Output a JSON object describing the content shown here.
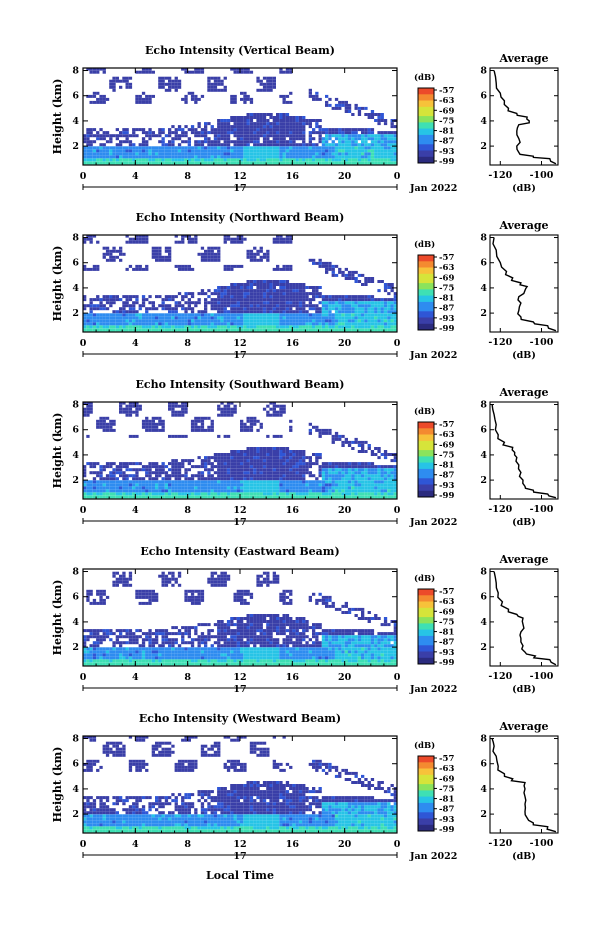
{
  "figure": {
    "xlabel": "Local Time",
    "colormap": [
      "#2b2b7e",
      "#3a3fa8",
      "#2f56d6",
      "#2e8cf0",
      "#27c4e6",
      "#3ee0b4",
      "#8be35c",
      "#d6e43a",
      "#f7c23a",
      "#f48a30",
      "#ec4a2a"
    ]
  },
  "chart_data": [
    {
      "type": "heatmap",
      "title": "Echo Intensity (Vertical Beam)",
      "ylabel": "Height (km)",
      "date_label": "17",
      "date_suffix": "Jan 2022",
      "x_ticks": [
        "0",
        "4",
        "8",
        "12",
        "16",
        "20",
        "0"
      ],
      "y_ticks": [
        "2",
        "4",
        "6",
        "8"
      ],
      "xlim": [
        0,
        24
      ],
      "ylim": [
        0.5,
        8.2
      ],
      "colorbar": {
        "unit": "(dB)",
        "ticks": [
          "-57",
          "-63",
          "-69",
          "-75",
          "-81",
          "-87",
          "-93",
          "-99"
        ]
      },
      "profile": {
        "title": "Average",
        "xlabel": "(dB)",
        "x_ticks": [
          "-120",
          "-100"
        ],
        "y_ticks": [
          "2",
          "4",
          "6",
          "8"
        ],
        "xlim": [
          -125,
          -92
        ],
        "ylim": [
          0.5,
          8.2
        ],
        "points": [
          [
            -93,
            0.6
          ],
          [
            -96,
            1.0
          ],
          [
            -104,
            1.2
          ],
          [
            -111,
            1.5
          ],
          [
            -112,
            2.0
          ],
          [
            -111,
            2.6
          ],
          [
            -112,
            3.2
          ],
          [
            -111,
            3.7
          ],
          [
            -106,
            4.0
          ],
          [
            -107,
            4.3
          ],
          [
            -112,
            4.6
          ],
          [
            -116,
            5.0
          ],
          [
            -118,
            5.6
          ],
          [
            -120,
            6.2
          ],
          [
            -122,
            7.0
          ],
          [
            -123,
            8.0
          ]
        ]
      }
    },
    {
      "type": "heatmap",
      "title": "Echo Intensity (Northward Beam)",
      "ylabel": "Height (km)",
      "date_label": "17",
      "date_suffix": "Jan 2022",
      "x_ticks": [
        "0",
        "4",
        "8",
        "12",
        "16",
        "20",
        "0"
      ],
      "y_ticks": [
        "2",
        "4",
        "6",
        "8"
      ],
      "xlim": [
        0,
        24
      ],
      "ylim": [
        0.5,
        8.2
      ],
      "colorbar": {
        "unit": "(dB)",
        "ticks": [
          "-57",
          "-63",
          "-69",
          "-75",
          "-81",
          "-87",
          "-93",
          "-99"
        ]
      },
      "profile": {
        "title": "Average",
        "xlabel": "(dB)",
        "x_ticks": [
          "-120",
          "-100"
        ],
        "y_ticks": [
          "2",
          "4",
          "6",
          "8"
        ],
        "xlim": [
          -125,
          -92
        ],
        "ylim": [
          0.5,
          8.2
        ],
        "points": [
          [
            -93,
            0.6
          ],
          [
            -97,
            1.0
          ],
          [
            -104,
            1.3
          ],
          [
            -110,
            1.7
          ],
          [
            -111,
            2.2
          ],
          [
            -110,
            2.8
          ],
          [
            -111,
            3.3
          ],
          [
            -108,
            3.8
          ],
          [
            -107,
            4.1
          ],
          [
            -110,
            4.4
          ],
          [
            -114,
            4.8
          ],
          [
            -117,
            5.3
          ],
          [
            -120,
            6.0
          ],
          [
            -122,
            7.0
          ],
          [
            -123,
            8.0
          ]
        ]
      }
    },
    {
      "type": "heatmap",
      "title": "Echo Intensity (Southward Beam)",
      "ylabel": "Height (km)",
      "date_label": "17",
      "date_suffix": "Jan 2022",
      "x_ticks": [
        "0",
        "4",
        "8",
        "12",
        "16",
        "20",
        "0"
      ],
      "y_ticks": [
        "2",
        "4",
        "6",
        "8"
      ],
      "xlim": [
        0,
        24
      ],
      "ylim": [
        0.5,
        8.2
      ],
      "colorbar": {
        "unit": "(dB)",
        "ticks": [
          "-57",
          "-63",
          "-69",
          "-75",
          "-81",
          "-87",
          "-93",
          "-99"
        ]
      },
      "profile": {
        "title": "Average",
        "xlabel": "(dB)",
        "x_ticks": [
          "-120",
          "-100"
        ],
        "y_ticks": [
          "2",
          "4",
          "6",
          "8"
        ],
        "xlim": [
          -125,
          -92
        ],
        "ylim": [
          0.5,
          8.2
        ],
        "points": [
          [
            -93,
            0.6
          ],
          [
            -97,
            0.9
          ],
          [
            -104,
            1.2
          ],
          [
            -108,
            1.5
          ],
          [
            -109,
            2.0
          ],
          [
            -110,
            2.6
          ],
          [
            -111,
            3.2
          ],
          [
            -112,
            3.8
          ],
          [
            -113,
            4.2
          ],
          [
            -114,
            4.6
          ],
          [
            -118,
            5.0
          ],
          [
            -121,
            5.6
          ],
          [
            -122,
            6.4
          ],
          [
            -123,
            7.2
          ],
          [
            -124,
            8.0
          ]
        ]
      }
    },
    {
      "type": "heatmap",
      "title": "Echo Intensity (Eastward Beam)",
      "ylabel": "Height (km)",
      "date_label": "17",
      "date_suffix": "Jan 2022",
      "x_ticks": [
        "0",
        "4",
        "8",
        "12",
        "16",
        "20",
        "0"
      ],
      "y_ticks": [
        "2",
        "4",
        "6",
        "8"
      ],
      "xlim": [
        0,
        24
      ],
      "ylim": [
        0.5,
        8.2
      ],
      "colorbar": {
        "unit": "(dB)",
        "ticks": [
          "-57",
          "-63",
          "-69",
          "-75",
          "-81",
          "-87",
          "-93",
          "-99"
        ]
      },
      "profile": {
        "title": "Average",
        "xlabel": "(dB)",
        "x_ticks": [
          "-120",
          "-100"
        ],
        "y_ticks": [
          "2",
          "4",
          "6",
          "8"
        ],
        "xlim": [
          -125,
          -92
        ],
        "ylim": [
          0.5,
          8.2
        ],
        "points": [
          [
            -93,
            0.6
          ],
          [
            -96,
            1.0
          ],
          [
            -103,
            1.3
          ],
          [
            -108,
            1.6
          ],
          [
            -109,
            2.1
          ],
          [
            -110,
            2.7
          ],
          [
            -110,
            3.2
          ],
          [
            -109,
            3.8
          ],
          [
            -109,
            4.3
          ],
          [
            -112,
            4.6
          ],
          [
            -116,
            5.0
          ],
          [
            -119,
            5.6
          ],
          [
            -121,
            6.3
          ],
          [
            -122,
            7.1
          ],
          [
            -123,
            8.0
          ]
        ]
      }
    },
    {
      "type": "heatmap",
      "title": "Echo Intensity (Westward Beam)",
      "ylabel": "Height (km)",
      "date_label": "17",
      "date_suffix": "Jan 2022",
      "x_ticks": [
        "0",
        "4",
        "8",
        "12",
        "16",
        "20",
        "0"
      ],
      "y_ticks": [
        "2",
        "4",
        "6",
        "8"
      ],
      "xlim": [
        0,
        24
      ],
      "ylim": [
        0.5,
        8.2
      ],
      "colorbar": {
        "unit": "(dB)",
        "ticks": [
          "-57",
          "-63",
          "-69",
          "-75",
          "-81",
          "-87",
          "-93",
          "-99"
        ]
      },
      "profile": {
        "title": "Average",
        "xlabel": "(dB)",
        "x_ticks": [
          "-120",
          "-100"
        ],
        "y_ticks": [
          "2",
          "4",
          "6",
          "8"
        ],
        "xlim": [
          -125,
          -92
        ],
        "ylim": [
          0.5,
          8.2
        ],
        "points": [
          [
            -93,
            0.6
          ],
          [
            -97,
            1.0
          ],
          [
            -104,
            1.3
          ],
          [
            -107,
            1.7
          ],
          [
            -108,
            2.2
          ],
          [
            -108,
            2.8
          ],
          [
            -108,
            3.4
          ],
          [
            -108,
            4.0
          ],
          [
            -108,
            4.5
          ],
          [
            -114,
            4.8
          ],
          [
            -118,
            5.2
          ],
          [
            -121,
            5.8
          ],
          [
            -122,
            6.6
          ],
          [
            -123,
            7.4
          ],
          [
            -124,
            8.0
          ]
        ]
      }
    }
  ]
}
